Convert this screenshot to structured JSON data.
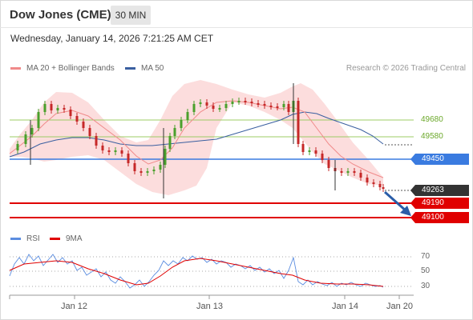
{
  "header": {
    "title": "Dow Jones (CME)",
    "timeframe": "30 MIN",
    "datetime": "Wednesday, January 14, 2026 7:21:25 AM CET"
  },
  "legend": {
    "ma20_label": "MA 20 + Bollinger Bands",
    "ma50_label": "MA 50",
    "credit": "Research © 2026 Trading Central"
  },
  "levels": {
    "r2": "49680",
    "r1": "49580",
    "pivot": "49450",
    "last": "49263",
    "s1": "49190",
    "s2": "49100"
  },
  "rsi": {
    "rsi_label": "RSI",
    "ma_label": "9MA",
    "axis": [
      "70",
      "50",
      "30"
    ]
  },
  "x_axis": [
    "Jan 12",
    "Jan 13",
    "Jan 14",
    "Jan 20"
  ],
  "colors": {
    "ma20": "#f08a8a",
    "ma50": "#3a5fa0",
    "bollinger_fill": "#fbd7d7",
    "pivot": "#3a7be0",
    "support": "#e00000",
    "resistance": "#9ccc65",
    "candle_up": "#4aa02c",
    "candle_down": "#c62828",
    "arrow": "#2a5da8",
    "last_badge": "#333333",
    "rsi_line": "#5b8de0"
  },
  "icons": [
    "down-arrow-icon"
  ]
}
